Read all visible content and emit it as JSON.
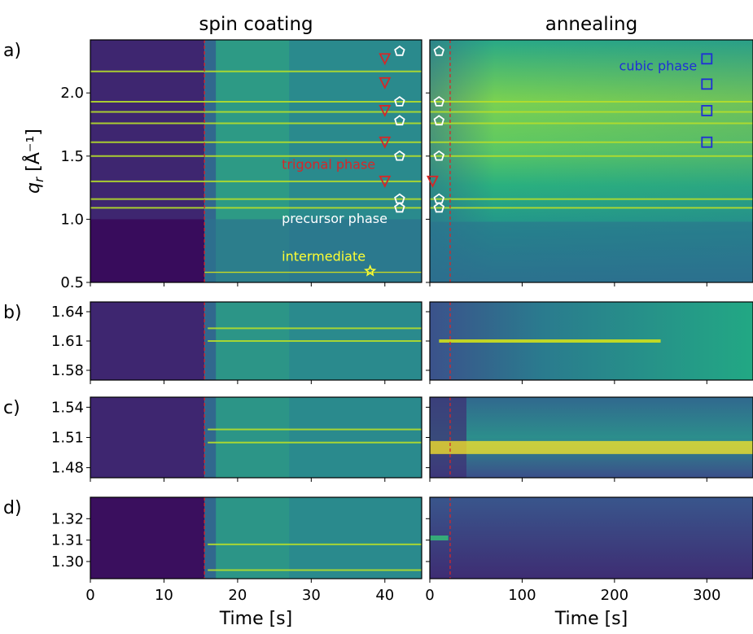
{
  "colors": {
    "viridis_dark": "#440154",
    "viridis_mid": "#21908d",
    "viridis_bright": "#fde725",
    "trigonal_marker": "#d62728",
    "cubic_marker": "#1f2fd6",
    "precursor_marker": "#ffffff",
    "intermediate_marker": "#ffff33",
    "transition_line": "#d62728"
  },
  "chart_data": [
    {
      "id": "a-spin",
      "panel_label": "a)",
      "type": "heatmap",
      "title": "spin coating",
      "xlabel": "",
      "ylabel": "q_r [Å⁻¹]",
      "xlim": [
        0,
        45
      ],
      "ylim": [
        0.5,
        2.42
      ],
      "yticks": [
        0.5,
        1.0,
        1.5,
        2.0
      ],
      "ytick_labels": [
        "0.5",
        "1.0",
        "1.5",
        "2.0"
      ],
      "xticks": [
        0,
        10,
        20,
        30,
        40
      ],
      "transition_time": 15.5,
      "bright_lines": [
        0.58,
        1.09,
        1.16,
        1.3,
        1.5,
        1.61,
        1.76,
        1.85,
        1.93,
        2.17
      ],
      "annotations": [
        {
          "text": "trigonal phase",
          "x": 26,
          "y": 1.4,
          "color": "#d62728"
        },
        {
          "text": "precursor phase",
          "x": 26,
          "y": 0.97,
          "color": "#ffffff"
        },
        {
          "text": "intermediate",
          "x": 26,
          "y": 0.67,
          "color": "#ffff33"
        }
      ],
      "markers": [
        {
          "phase": "trigonal",
          "symbol": "triangle-down",
          "x": 40,
          "y": [
            2.27,
            2.08,
            1.86,
            1.61,
            1.3
          ]
        },
        {
          "phase": "precursor",
          "symbol": "pentagon",
          "x": 42,
          "y": [
            2.33,
            1.93,
            1.78,
            1.5,
            1.16,
            1.09
          ]
        },
        {
          "phase": "intermediate",
          "symbol": "star",
          "x": 38,
          "y": [
            0.59
          ]
        }
      ]
    },
    {
      "id": "a-anneal",
      "type": "heatmap",
      "title": "annealing",
      "xlabel": "",
      "xlim": [
        0,
        350
      ],
      "ylim": [
        0.5,
        2.42
      ],
      "xticks": [
        0,
        100,
        200,
        300
      ],
      "transition_time": 22,
      "bright_lines": [
        1.09,
        1.16,
        1.5,
        1.61,
        1.76,
        1.85,
        1.93
      ],
      "annotations": [
        {
          "text": "cubic phase",
          "x": 205,
          "y": 2.18,
          "color": "#1f2fd6"
        }
      ],
      "markers": [
        {
          "phase": "precursor",
          "symbol": "pentagon",
          "x": 10,
          "y": [
            2.33,
            1.93,
            1.78,
            1.5,
            1.16,
            1.09
          ]
        },
        {
          "phase": "trigonal",
          "symbol": "triangle-down",
          "x": 3,
          "y": [
            1.3
          ]
        },
        {
          "phase": "cubic",
          "symbol": "square",
          "x": 300,
          "y": [
            2.27,
            2.07,
            1.86,
            1.61
          ]
        }
      ]
    },
    {
      "id": "b-spin",
      "panel_label": "b)",
      "type": "heatmap",
      "xlim": [
        0,
        45
      ],
      "ylim": [
        1.57,
        1.65
      ],
      "yticks": [
        1.58,
        1.61,
        1.64
      ],
      "ytick_labels": [
        "1.58",
        "1.61",
        "1.64"
      ],
      "xticks": [
        0,
        10,
        20,
        30,
        40
      ],
      "transition_time": 15.5,
      "bright_lines": [
        1.61,
        1.623
      ]
    },
    {
      "id": "b-anneal",
      "type": "heatmap",
      "xlim": [
        0,
        350
      ],
      "ylim": [
        1.57,
        1.65
      ],
      "xticks": [
        0,
        100,
        200,
        300
      ],
      "transition_time": 22,
      "bright_lines": [
        1.61
      ]
    },
    {
      "id": "c-spin",
      "panel_label": "c)",
      "type": "heatmap",
      "xlim": [
        0,
        45
      ],
      "ylim": [
        1.47,
        1.55
      ],
      "yticks": [
        1.48,
        1.51,
        1.54
      ],
      "ytick_labels": [
        "1.48",
        "1.51",
        "1.54"
      ],
      "xticks": [
        0,
        10,
        20,
        30,
        40
      ],
      "transition_time": 15.5,
      "bright_lines": [
        1.505,
        1.518
      ]
    },
    {
      "id": "c-anneal",
      "type": "heatmap",
      "xlim": [
        0,
        350
      ],
      "ylim": [
        1.47,
        1.55
      ],
      "xticks": [
        0,
        100,
        200,
        300
      ],
      "transition_time": 22,
      "bright_lines": [
        1.5
      ]
    },
    {
      "id": "d-spin",
      "panel_label": "d)",
      "type": "heatmap",
      "xlim": [
        0,
        45
      ],
      "ylim": [
        1.292,
        1.33
      ],
      "yticks": [
        1.3,
        1.31,
        1.32
      ],
      "ytick_labels": [
        "1.30",
        "1.31",
        "1.32"
      ],
      "xticks": [
        0,
        10,
        20,
        30,
        40
      ],
      "xtick_labels": [
        "0",
        "10",
        "20",
        "30",
        "40"
      ],
      "xlabel": "Time [s]",
      "transition_time": 15.5,
      "bright_lines": [
        1.296,
        1.308
      ]
    },
    {
      "id": "d-anneal",
      "type": "heatmap",
      "xlim": [
        0,
        350
      ],
      "ylim": [
        1.292,
        1.33
      ],
      "xticks": [
        0,
        100,
        200,
        300
      ],
      "xtick_labels": [
        "0",
        "100",
        "200",
        "300"
      ],
      "xlabel": "Time [s]",
      "transition_time": 22,
      "bright_lines": [
        1.311
      ]
    }
  ]
}
